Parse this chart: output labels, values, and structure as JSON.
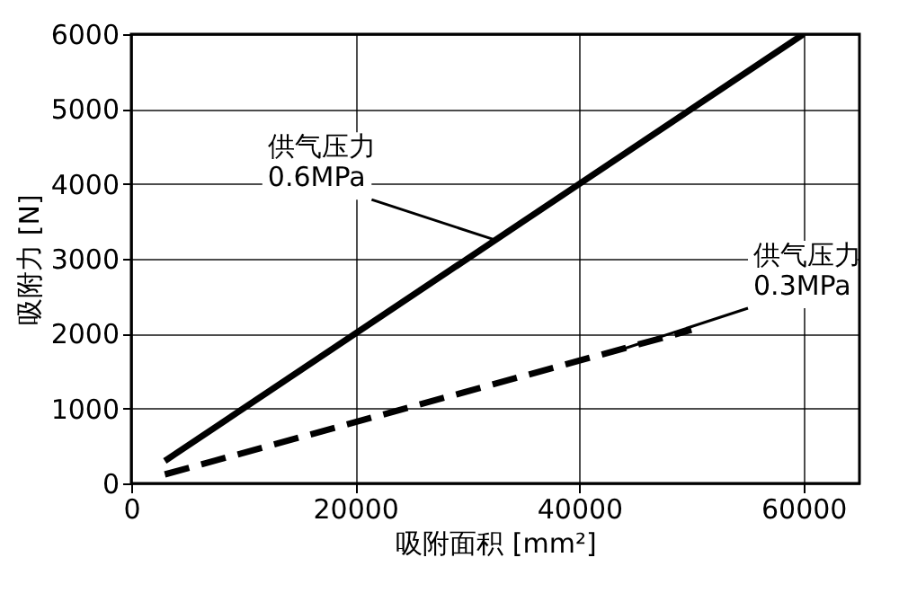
{
  "chart_data": {
    "type": "line",
    "xlabel": "吸附面积 [mm²]",
    "ylabel": "吸附力 [N]",
    "x": [
      3000,
      60000
    ],
    "series": [
      {
        "color": "#000000",
        "line_style": "solid",
        "values": [
          300,
          6000
        ]
      },
      {
        "color": "#000000",
        "line_style": "dashed",
        "x": [
          3000,
          50000
        ],
        "values": [
          120,
          2050
        ]
      }
    ],
    "xlim": [
      0,
      65000
    ],
    "xticks": [
      0,
      20000,
      40000,
      60000
    ],
    "ylim": [
      0,
      6000
    ],
    "yticks": [
      0,
      1000,
      2000,
      3000,
      4000,
      5000,
      6000
    ],
    "grid": true,
    "marker": "none",
    "annotations": [
      {
        "text": "供气压力\n0.6MPa",
        "x": 32500,
        "y": 3250
      },
      {
        "text": "供气压力\n0.3MPa",
        "x": 44000,
        "y": 1800
      }
    ]
  }
}
